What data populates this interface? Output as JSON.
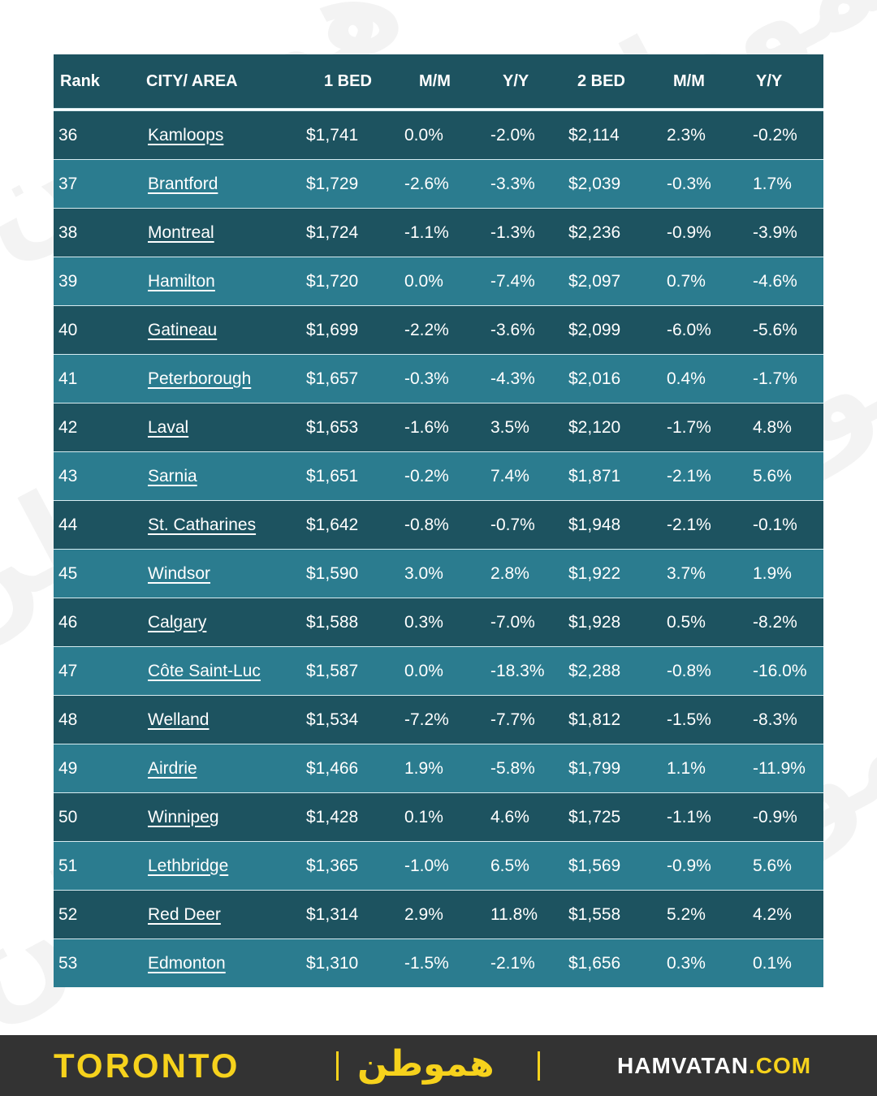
{
  "table": {
    "headers": [
      "Rank",
      "CITY/ AREA",
      "1 BED",
      "M/M",
      "Y/Y",
      "2 BED",
      "M/M",
      "Y/Y"
    ],
    "rows": [
      [
        "36",
        "Kamloops",
        "$1,741",
        "0.0%",
        "-2.0%",
        "$2,114",
        "2.3%",
        "-0.2%"
      ],
      [
        "37",
        "Brantford",
        "$1,729",
        "-2.6%",
        "-3.3%",
        "$2,039",
        "-0.3%",
        "1.7%"
      ],
      [
        "38",
        "Montreal",
        "$1,724",
        "-1.1%",
        "-1.3%",
        "$2,236",
        "-0.9%",
        "-3.9%"
      ],
      [
        "39",
        "Hamilton",
        "$1,720",
        "0.0%",
        "-7.4%",
        "$2,097",
        "0.7%",
        "-4.6%"
      ],
      [
        "40",
        "Gatineau",
        "$1,699",
        "-2.2%",
        "-3.6%",
        "$2,099",
        "-6.0%",
        "-5.6%"
      ],
      [
        "41",
        "Peterborough",
        "$1,657",
        "-0.3%",
        "-4.3%",
        "$2,016",
        "0.4%",
        "-1.7%"
      ],
      [
        "42",
        "Laval",
        "$1,653",
        "-1.6%",
        "3.5%",
        "$2,120",
        "-1.7%",
        "4.8%"
      ],
      [
        "43",
        "Sarnia",
        "$1,651",
        "-0.2%",
        "7.4%",
        "$1,871",
        "-2.1%",
        "5.6%"
      ],
      [
        "44",
        "St. Catharines",
        "$1,642",
        "-0.8%",
        "-0.7%",
        "$1,948",
        "-2.1%",
        "-0.1%"
      ],
      [
        "45",
        "Windsor",
        "$1,590",
        "3.0%",
        "2.8%",
        "$1,922",
        "3.7%",
        "1.9%"
      ],
      [
        "46",
        "Calgary",
        "$1,588",
        "0.3%",
        "-7.0%",
        "$1,928",
        "0.5%",
        "-8.2%"
      ],
      [
        "47",
        "Côte Saint-Luc",
        "$1,587",
        "0.0%",
        "-18.3%",
        "$2,288",
        "-0.8%",
        "-16.0%"
      ],
      [
        "48",
        "Welland",
        "$1,534",
        "-7.2%",
        "-7.7%",
        "$1,812",
        "-1.5%",
        "-8.3%"
      ],
      [
        "49",
        "Airdrie",
        "$1,466",
        "1.9%",
        "-5.8%",
        "$1,799",
        "1.1%",
        "-11.9%"
      ],
      [
        "50",
        "Winnipeg",
        "$1,428",
        "0.1%",
        "4.6%",
        "$1,725",
        "-1.1%",
        "-0.9%"
      ],
      [
        "51",
        "Lethbridge",
        "$1,365",
        "-1.0%",
        "6.5%",
        "$1,569",
        "-0.9%",
        "5.6%"
      ],
      [
        "52",
        "Red Deer",
        "$1,314",
        "2.9%",
        "11.8%",
        "$1,558",
        "5.2%",
        "4.2%"
      ],
      [
        "53",
        "Edmonton",
        "$1,310",
        "-1.5%",
        "-2.1%",
        "$1,656",
        "0.3%",
        "0.1%"
      ]
    ]
  },
  "footer": {
    "city": "TORONTO",
    "logo_text": "هموطن",
    "site_main": "HAMVATAN",
    "site_tld": ".COM"
  },
  "colors": {
    "header_bg": "#1d5360",
    "row_dark": "#1d5360",
    "row_light": "#2b7c8f",
    "accent_yellow": "#f6d21c",
    "footer_bg": "#333333"
  }
}
